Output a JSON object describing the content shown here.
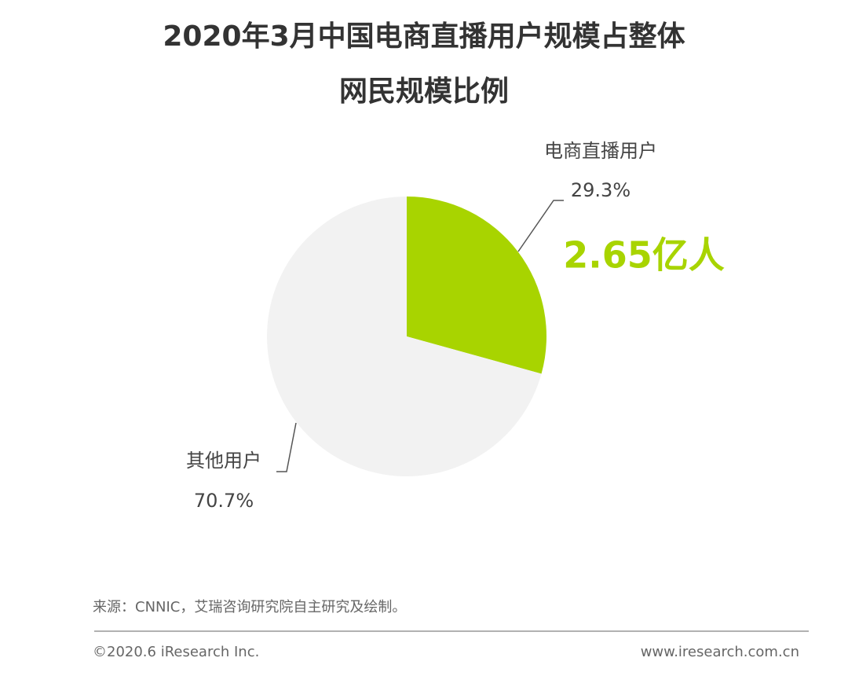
{
  "chart_data": {
    "type": "pie",
    "title": [
      "2020年3月中国电商直播用户规模占整体",
      "网民规模比例"
    ],
    "categories": [
      "电商直播用户",
      "其他用户"
    ],
    "values": [
      29.3,
      70.7
    ],
    "value_labels": [
      "29.3%",
      "70.7%"
    ],
    "colors": [
      "#a8d400",
      "#f2f2f2"
    ],
    "annotation": "2.65亿人",
    "source": "来源：CNNIC，艾瑞咨询研究院自主研究及绘制。"
  },
  "footer": {
    "copyright": "©2020.6 iResearch Inc.",
    "website": "www.iresearch.com.cn"
  }
}
